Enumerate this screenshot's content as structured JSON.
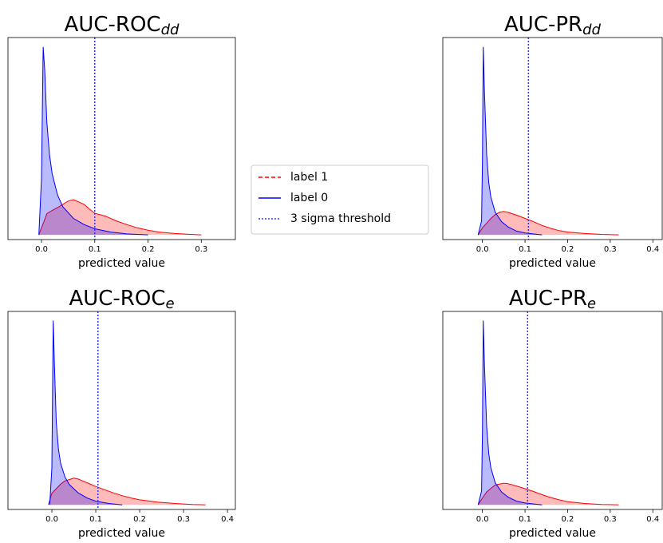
{
  "chart_data": [
    {
      "type": "density",
      "title": "AUC-ROC",
      "title_sub": "dd",
      "xlabel": "predicted value",
      "xlim": [
        -0.063,
        0.364
      ],
      "ylim": [
        -1,
        42
      ],
      "xticks": [
        {
          "value": 0,
          "label": "0.0"
        },
        0.1,
        0.2,
        0.3
      ],
      "threshold": {
        "name": "3 sigma threshold",
        "value": 0.1,
        "color": "#3333ff"
      },
      "series": [
        {
          "name": "label 1",
          "color": "#ff0000",
          "x": [
            -0.005,
            0.005,
            0.01,
            0.02,
            0.03,
            0.04,
            0.05,
            0.06,
            0.07,
            0.08,
            0.09,
            0.1,
            0.12,
            0.14,
            0.16,
            0.18,
            0.2,
            0.22,
            0.25,
            0.28,
            0.3
          ],
          "values": [
            0,
            3,
            4.5,
            5.2,
            5.8,
            6.5,
            7.2,
            7.5,
            7,
            6.5,
            5.5,
            4.6,
            4,
            3,
            2.2,
            1.5,
            1,
            0.6,
            0.3,
            0.1,
            0
          ]
        },
        {
          "name": "label 0",
          "color": "#0000ff",
          "x": [
            -0.005,
            0,
            0.003,
            0.006,
            0.01,
            0.015,
            0.02,
            0.03,
            0.04,
            0.06,
            0.08,
            0.1,
            0.13,
            0.16,
            0.2
          ],
          "values": [
            0,
            12,
            40,
            35,
            24,
            17,
            13,
            8.5,
            6,
            3.5,
            2.2,
            1.3,
            0.6,
            0.2,
            0
          ]
        }
      ]
    },
    {
      "type": "density",
      "title": "AUC-PR",
      "title_sub": "dd",
      "xlabel": "predicted value",
      "xlim": [
        -0.093,
        0.422
      ],
      "ylim": [
        -1,
        42
      ],
      "xticks": [
        {
          "value": 0,
          "label": "0.0"
        },
        0.1,
        0.2,
        0.3,
        0.4
      ],
      "threshold": {
        "value": 0.108
      },
      "series": [
        {
          "color": "#ff0000",
          "x": [
            -0.01,
            0,
            0.01,
            0.02,
            0.03,
            0.04,
            0.05,
            0.06,
            0.08,
            0.1,
            0.12,
            0.14,
            0.16,
            0.18,
            0.2,
            0.24,
            0.28,
            0.32
          ],
          "values": [
            0,
            1.5,
            2.5,
            3.5,
            4.3,
            4.8,
            5,
            4.8,
            4.2,
            3.5,
            2.8,
            2,
            1.4,
            0.9,
            0.6,
            0.3,
            0.1,
            0
          ]
        },
        {
          "color": "#0000ff",
          "x": [
            -0.01,
            -0.002,
            0,
            0.002,
            0.005,
            0.01,
            0.015,
            0.02,
            0.03,
            0.045,
            0.06,
            0.08,
            0.1,
            0.14
          ],
          "values": [
            0,
            3,
            16,
            40,
            30,
            17,
            11,
            8,
            4.8,
            2.8,
            1.7,
            0.8,
            0.4,
            0
          ]
        }
      ]
    },
    {
      "type": "density",
      "title": "AUC-ROC",
      "title_sub": "e",
      "xlabel": "predicted value",
      "xlim": [
        -0.1,
        0.418
      ],
      "ylim": [
        -1,
        42
      ],
      "xticks": [
        {
          "value": 0,
          "label": "0.0"
        },
        0.1,
        0.2,
        0.3,
        0.4
      ],
      "threshold": {
        "value": 0.105
      },
      "series": [
        {
          "color": "#ff0000",
          "x": [
            -0.008,
            0,
            0.01,
            0.02,
            0.03,
            0.04,
            0.05,
            0.06,
            0.07,
            0.08,
            0.1,
            0.12,
            0.14,
            0.16,
            0.18,
            0.2,
            0.24,
            0.28,
            0.32,
            0.35
          ],
          "values": [
            0,
            2.5,
            3.5,
            4.5,
            5.2,
            5.5,
            5.8,
            5.6,
            5.2,
            4.8,
            4,
            3.3,
            2.6,
            2,
            1.5,
            1.1,
            0.6,
            0.3,
            0.1,
            0
          ]
        },
        {
          "color": "#0000ff",
          "x": [
            -0.005,
            0,
            0.003,
            0.006,
            0.01,
            0.015,
            0.02,
            0.03,
            0.04,
            0.06,
            0.08,
            0.1,
            0.13,
            0.16
          ],
          "values": [
            0,
            8,
            40,
            30,
            18,
            12,
            9,
            6,
            4.4,
            2.6,
            1.5,
            0.8,
            0.3,
            0
          ]
        }
      ]
    },
    {
      "type": "density",
      "title": "AUC-PR",
      "title_sub": "e",
      "xlabel": "predicted value",
      "xlim": [
        -0.093,
        0.422
      ],
      "ylim": [
        -1,
        42
      ],
      "xticks": [
        {
          "value": 0,
          "label": "0.0"
        },
        0.1,
        0.2,
        0.3,
        0.4
      ],
      "threshold": {
        "value": 0.106
      },
      "series": [
        {
          "color": "#ff0000",
          "x": [
            -0.01,
            0,
            0.01,
            0.02,
            0.03,
            0.04,
            0.05,
            0.06,
            0.08,
            0.1,
            0.12,
            0.14,
            0.16,
            0.18,
            0.2,
            0.24,
            0.28,
            0.32
          ],
          "values": [
            0,
            1.5,
            2.8,
            3.6,
            4.3,
            4.5,
            4.7,
            4.6,
            4.1,
            3.5,
            2.9,
            2.2,
            1.6,
            1.1,
            0.7,
            0.3,
            0.1,
            0
          ]
        },
        {
          "color": "#0000ff",
          "x": [
            -0.01,
            -0.002,
            0,
            0.002,
            0.005,
            0.01,
            0.015,
            0.02,
            0.03,
            0.045,
            0.06,
            0.08,
            0.1,
            0.14
          ],
          "values": [
            0,
            3,
            16,
            40,
            30,
            17,
            11,
            8,
            4.8,
            2.8,
            1.7,
            0.8,
            0.4,
            0
          ]
        }
      ]
    }
  ]
}
